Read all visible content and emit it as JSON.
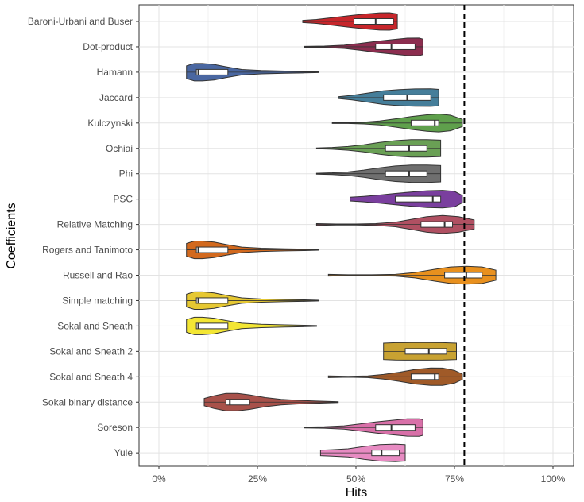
{
  "chart_data": {
    "type": "violin",
    "title": "",
    "xlabel": "Hits",
    "ylabel": "Coefficients",
    "xlim": [
      0,
      100
    ],
    "x_ticks": [
      {
        "value": 0,
        "label": "0%"
      },
      {
        "value": 25,
        "label": "25%"
      },
      {
        "value": 50,
        "label": "50%"
      },
      {
        "value": 75,
        "label": "75%"
      },
      {
        "value": 100,
        "label": "100%"
      }
    ],
    "reference_line": {
      "x": 77.5,
      "style": "dashed"
    },
    "grid": true,
    "categories": [
      "Baroni-Urbani and Buser",
      "Dot-product",
      "Hamann",
      "Jaccard",
      "Kulczynski",
      "Ochiai",
      "Phi",
      "PSC",
      "Relative Matching",
      "Rogers and Tanimoto",
      "Russell and Rao",
      "Simple matching",
      "Sokal and Sneath",
      "Sokal and Sneath 2",
      "Sokal and Sneath 4",
      "Sokal binary distance",
      "Soreson",
      "Yule"
    ],
    "series": [
      {
        "category": "Baroni-Urbani and Buser",
        "color": "#C7262B",
        "min": 36.5,
        "max": 60.5,
        "q1": 49.5,
        "median": 55,
        "q3": 59.5,
        "density": [
          [
            36.5,
            0.12
          ],
          [
            40,
            0.22
          ],
          [
            44,
            0.42
          ],
          [
            48,
            0.62
          ],
          [
            52,
            0.8
          ],
          [
            56,
            0.95
          ],
          [
            58.5,
            0.96
          ],
          [
            60.5,
            0.82
          ]
        ]
      },
      {
        "category": "Dot-product",
        "color": "#8C2D4F",
        "min": 37,
        "max": 67,
        "q1": 55,
        "median": 59,
        "q3": 65,
        "density": [
          [
            37,
            0.05
          ],
          [
            42,
            0.08
          ],
          [
            47,
            0.18
          ],
          [
            51,
            0.38
          ],
          [
            55,
            0.6
          ],
          [
            59,
            0.78
          ],
          [
            63,
            0.95
          ],
          [
            66,
            0.96
          ],
          [
            67,
            0.85
          ]
        ]
      },
      {
        "category": "Hamann",
        "color": "#4A67A1",
        "min": 7,
        "max": 40.5,
        "q1": 9.5,
        "median": 10,
        "q3": 17.5,
        "density": [
          [
            7,
            0.7
          ],
          [
            9,
            0.96
          ],
          [
            11,
            0.96
          ],
          [
            14,
            0.85
          ],
          [
            17,
            0.6
          ],
          [
            21,
            0.3
          ],
          [
            26,
            0.18
          ],
          [
            32,
            0.12
          ],
          [
            37,
            0.08
          ],
          [
            40.5,
            0.04
          ]
        ]
      },
      {
        "category": "Jaccard",
        "color": "#457E9A",
        "min": 45.5,
        "max": 71,
        "q1": 57,
        "median": 63,
        "q3": 69,
        "density": [
          [
            45.5,
            0.1
          ],
          [
            49,
            0.25
          ],
          [
            53,
            0.5
          ],
          [
            57,
            0.75
          ],
          [
            61,
            0.88
          ],
          [
            65,
            0.95
          ],
          [
            69,
            0.96
          ],
          [
            71,
            0.9
          ]
        ]
      },
      {
        "category": "Kulczynski",
        "color": "#5FA04C",
        "min": 44,
        "max": 77,
        "q1": 64,
        "median": 70,
        "q3": 71,
        "density": [
          [
            44,
            0.05
          ],
          [
            48,
            0.05
          ],
          [
            52,
            0.1
          ],
          [
            56,
            0.22
          ],
          [
            60,
            0.45
          ],
          [
            64,
            0.7
          ],
          [
            68,
            0.9
          ],
          [
            71,
            0.98
          ],
          [
            74,
            0.85
          ],
          [
            77,
            0.4
          ]
        ]
      },
      {
        "category": "Ochiai",
        "color": "#6AA055",
        "min": 40,
        "max": 71.5,
        "q1": 57.5,
        "median": 63.5,
        "q3": 68,
        "density": [
          [
            40,
            0.05
          ],
          [
            44,
            0.1
          ],
          [
            48,
            0.2
          ],
          [
            52,
            0.4
          ],
          [
            56,
            0.65
          ],
          [
            60,
            0.85
          ],
          [
            64,
            0.95
          ],
          [
            68,
            0.96
          ],
          [
            71.5,
            0.9
          ]
        ]
      },
      {
        "category": "Phi",
        "color": "#6F6F6F",
        "min": 40,
        "max": 71.5,
        "q1": 57.5,
        "median": 63.5,
        "q3": 68,
        "density": [
          [
            40,
            0.05
          ],
          [
            44,
            0.1
          ],
          [
            48,
            0.2
          ],
          [
            52,
            0.4
          ],
          [
            56,
            0.65
          ],
          [
            60,
            0.85
          ],
          [
            64,
            0.95
          ],
          [
            68,
            0.96
          ],
          [
            71.5,
            0.9
          ]
        ]
      },
      {
        "category": "PSC",
        "color": "#7A3F9E",
        "min": 48.5,
        "max": 77,
        "q1": 60,
        "median": 69.5,
        "q3": 71.5,
        "density": [
          [
            48.5,
            0.2
          ],
          [
            52,
            0.3
          ],
          [
            56,
            0.45
          ],
          [
            60,
            0.62
          ],
          [
            64,
            0.78
          ],
          [
            68,
            0.92
          ],
          [
            72,
            0.96
          ],
          [
            75,
            0.85
          ],
          [
            77,
            0.4
          ]
        ]
      },
      {
        "category": "Relative Matching",
        "color": "#B05062",
        "min": 40,
        "max": 80,
        "q1": 66.5,
        "median": 72.5,
        "q3": 74.5,
        "density": [
          [
            40,
            0.1
          ],
          [
            45,
            0.05
          ],
          [
            50,
            0.05
          ],
          [
            55,
            0.1
          ],
          [
            60,
            0.25
          ],
          [
            64,
            0.55
          ],
          [
            68,
            0.85
          ],
          [
            72,
            0.98
          ],
          [
            76,
            0.85
          ],
          [
            80,
            0.5
          ]
        ]
      },
      {
        "category": "Rogers and Tanimoto",
        "color": "#D2691E",
        "min": 7,
        "max": 40.5,
        "q1": 9.5,
        "median": 10,
        "q3": 17.5,
        "density": [
          [
            7,
            0.7
          ],
          [
            9,
            0.96
          ],
          [
            11,
            0.96
          ],
          [
            14,
            0.85
          ],
          [
            17,
            0.6
          ],
          [
            21,
            0.3
          ],
          [
            26,
            0.18
          ],
          [
            32,
            0.12
          ],
          [
            37,
            0.08
          ],
          [
            40.5,
            0.04
          ]
        ]
      },
      {
        "category": "Russell and Rao",
        "color": "#E8901E",
        "min": 43,
        "max": 85.5,
        "q1": 72.5,
        "median": 78,
        "q3": 82,
        "density": [
          [
            43,
            0.1
          ],
          [
            48,
            0.05
          ],
          [
            54,
            0.05
          ],
          [
            60,
            0.1
          ],
          [
            65,
            0.3
          ],
          [
            70,
            0.65
          ],
          [
            74,
            0.9
          ],
          [
            78,
            0.98
          ],
          [
            82,
            0.9
          ],
          [
            85.5,
            0.55
          ]
        ]
      },
      {
        "category": "Simple matching",
        "color": "#E6C832",
        "min": 7,
        "max": 40.5,
        "q1": 9.5,
        "median": 10,
        "q3": 17.5,
        "density": [
          [
            7,
            0.7
          ],
          [
            9,
            0.96
          ],
          [
            11,
            0.96
          ],
          [
            14,
            0.85
          ],
          [
            17,
            0.6
          ],
          [
            21,
            0.3
          ],
          [
            26,
            0.18
          ],
          [
            32,
            0.12
          ],
          [
            37,
            0.08
          ],
          [
            40.5,
            0.04
          ]
        ]
      },
      {
        "category": "Sokal and Sneath",
        "color": "#F3E634",
        "min": 7,
        "max": 40,
        "q1": 9.5,
        "median": 10,
        "q3": 17.5,
        "density": [
          [
            7,
            0.7
          ],
          [
            9,
            0.96
          ],
          [
            11,
            0.96
          ],
          [
            14,
            0.85
          ],
          [
            17,
            0.6
          ],
          [
            21,
            0.3
          ],
          [
            26,
            0.18
          ],
          [
            32,
            0.12
          ],
          [
            37,
            0.08
          ],
          [
            40,
            0.04
          ]
        ]
      },
      {
        "category": "Sokal and Sneath 2",
        "color": "#C8A232",
        "min": 57,
        "max": 75.5,
        "q1": 62.5,
        "median": 68.5,
        "q3": 73,
        "density": [
          [
            57,
            0.9
          ],
          [
            60,
            0.95
          ],
          [
            64,
            0.96
          ],
          [
            68,
            0.96
          ],
          [
            72,
            0.95
          ],
          [
            75.5,
            0.9
          ]
        ]
      },
      {
        "category": "Sokal and Sneath 4",
        "color": "#A05A28",
        "min": 43,
        "max": 77,
        "q1": 64,
        "median": 70,
        "q3": 71,
        "density": [
          [
            43,
            0.1
          ],
          [
            48,
            0.05
          ],
          [
            53,
            0.1
          ],
          [
            57,
            0.25
          ],
          [
            61,
            0.5
          ],
          [
            65,
            0.8
          ],
          [
            69,
            0.96
          ],
          [
            72,
            0.95
          ],
          [
            75,
            0.7
          ],
          [
            77,
            0.3
          ]
        ]
      },
      {
        "category": "Sokal binary distance",
        "color": "#A8514A",
        "min": 11.5,
        "max": 45.5,
        "q1": 17,
        "median": 18,
        "q3": 23,
        "density": [
          [
            11.5,
            0.4
          ],
          [
            14,
            0.7
          ],
          [
            17,
            0.96
          ],
          [
            20,
            0.96
          ],
          [
            23,
            0.8
          ],
          [
            27,
            0.5
          ],
          [
            31,
            0.3
          ],
          [
            35,
            0.2
          ],
          [
            40,
            0.12
          ],
          [
            45.5,
            0.05
          ]
        ]
      },
      {
        "category": "Soreson",
        "color": "#D870A8",
        "min": 37,
        "max": 67,
        "q1": 55,
        "median": 59,
        "q3": 65,
        "density": [
          [
            37,
            0.05
          ],
          [
            42,
            0.08
          ],
          [
            47,
            0.18
          ],
          [
            51,
            0.38
          ],
          [
            55,
            0.6
          ],
          [
            59,
            0.78
          ],
          [
            63,
            0.95
          ],
          [
            66,
            0.96
          ],
          [
            67,
            0.85
          ]
        ]
      },
      {
        "category": "Yule",
        "color": "#E78BC2",
        "min": 41,
        "max": 62.5,
        "q1": 54,
        "median": 56.5,
        "q3": 61,
        "density": [
          [
            41,
            0.3
          ],
          [
            44,
            0.35
          ],
          [
            48,
            0.45
          ],
          [
            52,
            0.7
          ],
          [
            56,
            0.9
          ],
          [
            60,
            0.96
          ],
          [
            62.5,
            0.9
          ]
        ]
      }
    ]
  }
}
